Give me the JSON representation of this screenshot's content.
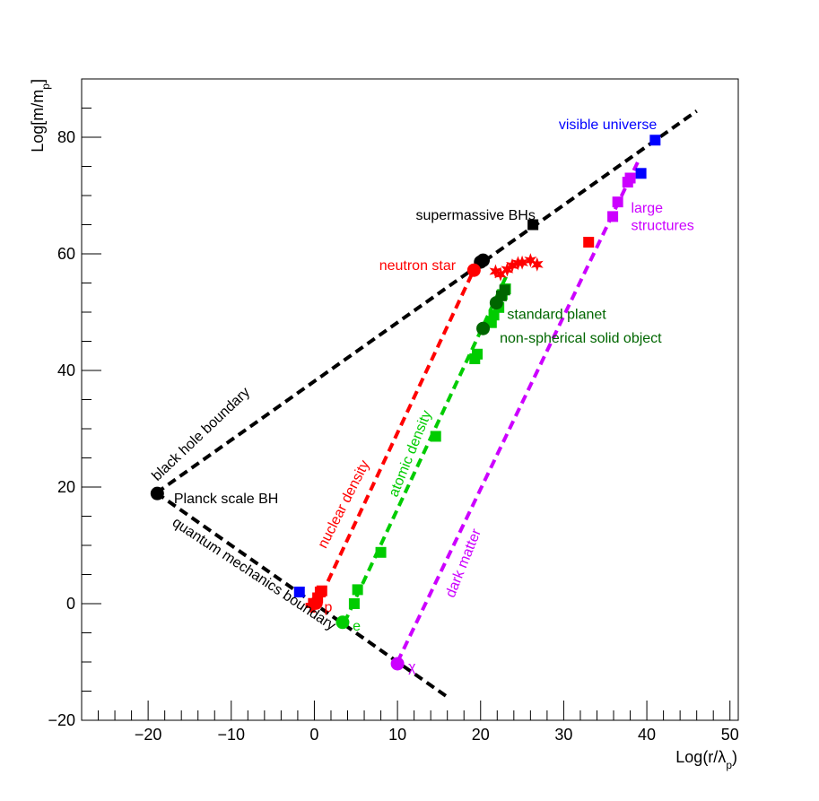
{
  "chart_data": {
    "type": "scatter",
    "title": "",
    "xlabel": {
      "main": "Log(r/λ",
      "sub": "p",
      "close": ")"
    },
    "ylabel": {
      "main": "Log[m/m",
      "sub": "p",
      "close": "]"
    },
    "xlim": [
      -28,
      51
    ],
    "ylim": [
      -20,
      90
    ],
    "xticks": [
      -20,
      -10,
      0,
      10,
      20,
      30,
      40,
      50
    ],
    "xtick_labels": [
      "−20",
      "−10",
      "0",
      "10",
      "20",
      "30",
      "40",
      "50"
    ],
    "yticks": [
      -20,
      0,
      20,
      40,
      60,
      80
    ],
    "ytick_labels": [
      "−20",
      "0",
      "20",
      "40",
      "60",
      "80"
    ],
    "grid": false,
    "colors": {
      "black": "#000000",
      "nuclear": "#ff0000",
      "atomic": "#00cc00",
      "planet": "#006600",
      "dark": "#cc00ff",
      "blue": "#0000ff"
    },
    "lines": [
      {
        "name": "black hole boundary",
        "color": "#000000",
        "x": [
          -19,
          46
        ],
        "y": [
          19,
          84.5
        ]
      },
      {
        "name": "quantum mechanics boundary",
        "color": "#000000",
        "x": [
          -19,
          16
        ],
        "y": [
          19,
          -16
        ]
      },
      {
        "name": "nuclear density",
        "color": "#ff0000",
        "x": [
          0.9,
          19.2
        ],
        "y": [
          1.6,
          57.3
        ]
      },
      {
        "name": "atomic density",
        "color": "#00cc00",
        "x": [
          3.6,
          23.2
        ],
        "y": [
          -3.3,
          56.5
        ]
      },
      {
        "name": "dark matter",
        "color": "#cc00ff",
        "x": [
          10,
          39
        ],
        "y": [
          -10,
          76
        ]
      }
    ],
    "series": [
      {
        "color": "#000000",
        "marker": "circle",
        "x": [
          -18.9,
          20.0,
          20.3
        ],
        "y": [
          18.9,
          58.6,
          58.9
        ]
      },
      {
        "color": "#000000",
        "marker": "square",
        "x": [
          26.3
        ],
        "y": [
          65.0
        ]
      },
      {
        "color": "#0000ff",
        "marker": "square",
        "x": [
          -1.8,
          39.3,
          41.0
        ],
        "y": [
          2.0,
          73.8,
          79.5
        ]
      },
      {
        "color": "#ff0000",
        "marker": "square",
        "x": [
          0.4,
          0.7,
          0.9,
          33.0
        ],
        "y": [
          1.0,
          2.0,
          2.2,
          62.0
        ]
      },
      {
        "color": "#ff0000",
        "marker": "circle",
        "x": [
          0.2,
          19.2
        ],
        "y": [
          0.1,
          57.2
        ]
      },
      {
        "color": "#ff0000",
        "marker": "cross",
        "x": [
          -0.2,
          0.1
        ],
        "y": [
          -0.3,
          0.5
        ]
      },
      {
        "color": "#ff0000",
        "marker": "star",
        "x": [
          21.8,
          22.4,
          23.2,
          23.8,
          24.5,
          25.0,
          26.0,
          26.8
        ],
        "y": [
          57.0,
          56.5,
          57.3,
          58.0,
          58.4,
          58.5,
          58.9,
          58.2
        ]
      },
      {
        "color": "#00cc00",
        "marker": "square",
        "x": [
          4.8,
          5.2,
          8.0,
          14.6,
          19.3,
          19.6,
          21.3,
          21.6,
          22.2,
          22.6,
          23.0
        ],
        "y": [
          0.0,
          2.4,
          8.8,
          28.7,
          42.0,
          42.8,
          48.2,
          49.5,
          50.8,
          53.0,
          54.0
        ]
      },
      {
        "color": "#00cc00",
        "marker": "circle",
        "x": [
          3.4
        ],
        "y": [
          -3.2
        ]
      },
      {
        "color": "#006600",
        "marker": "circle",
        "x": [
          20.3,
          21.9
        ],
        "y": [
          47.2,
          51.6
        ]
      },
      {
        "color": "#006600",
        "marker": "square",
        "x": [
          22.5,
          22.9
        ],
        "y": [
          52.8,
          53.8
        ]
      },
      {
        "color": "#cc00ff",
        "marker": "square",
        "x": [
          35.9,
          36.5,
          37.7,
          38.0
        ],
        "y": [
          66.4,
          68.9,
          72.3,
          73.0
        ]
      },
      {
        "color": "#cc00ff",
        "marker": "circle",
        "x": [
          10.0
        ],
        "y": [
          -10.3
        ]
      }
    ],
    "annotations": [
      {
        "text": "visible universe",
        "color": "#0000ff",
        "x": 29.4,
        "y": 82.0,
        "rot": 0,
        "anchor": "start"
      },
      {
        "text": "supermassive BHs",
        "color": "#000000",
        "x": 12.2,
        "y": 66.5,
        "rot": 0,
        "anchor": "start"
      },
      {
        "text": "neutron star",
        "color": "#ff0000",
        "x": 7.8,
        "y": 57.9,
        "rot": 0,
        "anchor": "start"
      },
      {
        "text": "large",
        "color": "#cc00ff",
        "x": 38.1,
        "y": 67.7,
        "rot": 0,
        "anchor": "start"
      },
      {
        "text": "structures",
        "color": "#cc00ff",
        "x": 38.1,
        "y": 64.7,
        "rot": 0,
        "anchor": "start"
      },
      {
        "text": "standard planet",
        "color": "#006600",
        "x": 23.2,
        "y": 49.5,
        "rot": 0,
        "anchor": "start"
      },
      {
        "text": "non-spherical solid object",
        "color": "#006600",
        "x": 22.3,
        "y": 45.4,
        "rot": 0,
        "anchor": "start"
      },
      {
        "text": "Planck scale BH",
        "color": "#000000",
        "x": -16.9,
        "y": 17.9,
        "rot": 0,
        "anchor": "start"
      },
      {
        "text": "black hole boundary",
        "color": "#000000",
        "x": -13.6,
        "y": 29.0,
        "rot": -43.5,
        "anchor": "middle"
      },
      {
        "text": "quantum mechanics boundary",
        "color": "#000000",
        "x": -7.3,
        "y": 5.0,
        "rot": 33.5,
        "anchor": "middle"
      },
      {
        "text": "nuclear density",
        "color": "#ff0000",
        "x": 3.6,
        "y": 17.0,
        "rot": -63,
        "anchor": "middle"
      },
      {
        "text": "atomic density",
        "color": "#00cc00",
        "x": 11.6,
        "y": 25.7,
        "rot": -68,
        "anchor": "middle"
      },
      {
        "text": "dark matter",
        "color": "#cc00ff",
        "x": 18.0,
        "y": 6.9,
        "rot": -68,
        "anchor": "middle"
      },
      {
        "text": "p",
        "color": "#ff0000",
        "x": 1.2,
        "y": -0.7,
        "rot": 0,
        "anchor": "start"
      },
      {
        "text": "e",
        "color": "#00cc00",
        "x": 4.6,
        "y": -4.0,
        "rot": 0,
        "anchor": "start"
      },
      {
        "text": "χ",
        "color": "#cc00ff",
        "x": 11.3,
        "y": -11.0,
        "rot": 0,
        "anchor": "start"
      }
    ]
  }
}
